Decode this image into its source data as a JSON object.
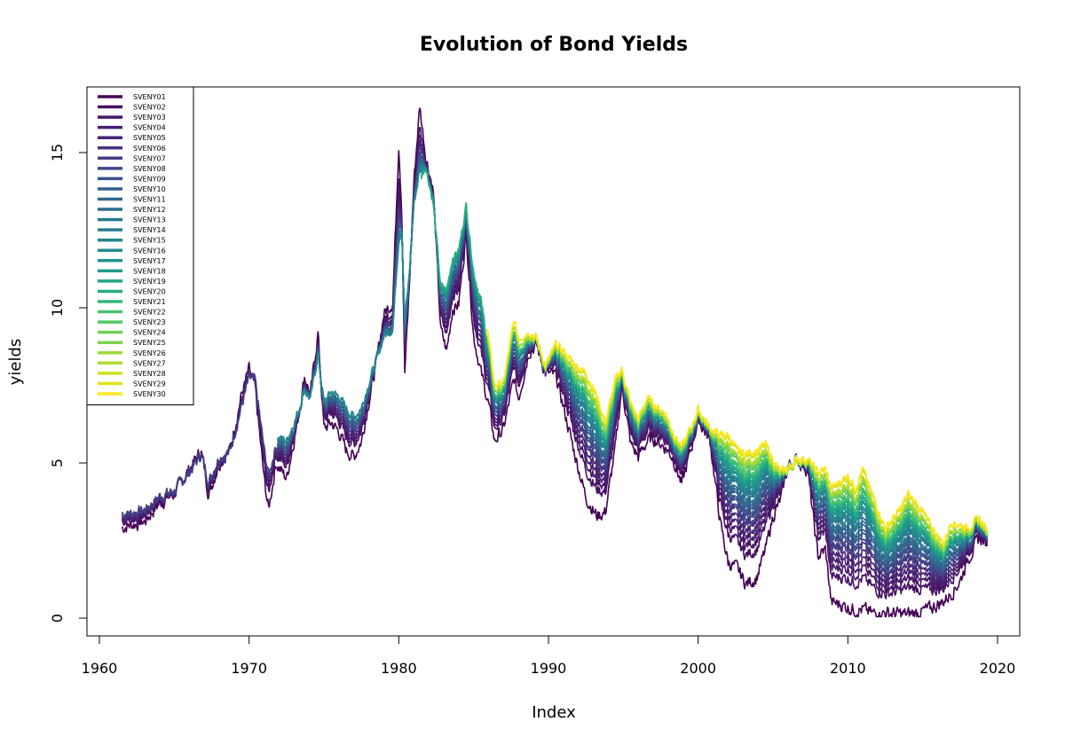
{
  "chart_data": {
    "type": "line",
    "title": "Evolution of Bond Yields",
    "xlabel": "Index",
    "ylabel": "yields",
    "xlim": [
      1961.5,
      2019.3
    ],
    "ylim": [
      0,
      16.5
    ],
    "x_ticks": [
      1960,
      1970,
      1980,
      1990,
      2000,
      2010,
      2020
    ],
    "y_ticks": [
      0,
      5,
      10,
      15
    ],
    "grid": false,
    "legend_position": "top-left",
    "palette": "viridis",
    "colors": [
      "#440154",
      "#46085C",
      "#471063",
      "#481769",
      "#48186A",
      "#481E70",
      "#472575",
      "#472C7A",
      "#46337E",
      "#433E85",
      "#404688",
      "#3E4A89",
      "#3B518B",
      "#38598C",
      "#355F8D",
      "#33638D",
      "#31688E",
      "#2E6E8E",
      "#2C728E",
      "#2A788E",
      "#287D8E",
      "#26828E",
      "#24878E",
      "#228B8D",
      "#21908C",
      "#1F948C",
      "#1F998A",
      "#1FA088",
      "#22A785",
      "#27AD81",
      "#2EB37C",
      "#35B779",
      "#3FBC73",
      "#4AC16D",
      "#56C667",
      "#63CB5F",
      "#70CF57",
      "#7FD34E",
      "#8FD744",
      "#9FDA3A",
      "#AEDC30",
      "#BFDF25",
      "#CFE11C",
      "#DFE318",
      "#ECE51B",
      "#FDE725"
    ],
    "series_names": [
      "SVENY01",
      "SVENY02",
      "SVENY03",
      "SVENY04",
      "SVENY05",
      "SVENY06",
      "SVENY07",
      "SVENY08",
      "SVENY09",
      "SVENY10",
      "SVENY11",
      "SVENY12",
      "SVENY13",
      "SVENY14",
      "SVENY15",
      "SVENY16",
      "SVENY17",
      "SVENY18",
      "SVENY19",
      "SVENY20",
      "SVENY21",
      "SVENY22",
      "SVENY23",
      "SVENY24",
      "SVENY25",
      "SVENY26",
      "SVENY27",
      "SVENY28",
      "SVENY29",
      "SVENY30"
    ],
    "series_start": [
      1961.5,
      1961.5,
      1961.5,
      1961.5,
      1961.5,
      1961.5,
      1961.5,
      1971.9,
      1971.9,
      1971.9,
      1971.9,
      1971.9,
      1971.9,
      1971.9,
      1971.9,
      1981.5,
      1981.5,
      1981.5,
      1981.5,
      1981.5,
      1985.9,
      1985.9,
      1985.9,
      1985.9,
      1985.9,
      1985.9,
      1985.9,
      1985.9,
      1985.9,
      1985.9
    ],
    "long_rate": [
      [
        1961.5,
        3.9
      ],
      [
        1962.0,
        3.8
      ],
      [
        1963.0,
        3.9
      ],
      [
        1964.0,
        4.15
      ],
      [
        1965.0,
        4.2
      ],
      [
        1966.0,
        4.6
      ],
      [
        1966.8,
        5.2
      ],
      [
        1967.3,
        4.8
      ],
      [
        1968.0,
        5.4
      ],
      [
        1968.7,
        5.3
      ],
      [
        1969.5,
        6.5
      ],
      [
        1970.0,
        7.5
      ],
      [
        1970.4,
        7.9
      ],
      [
        1971.0,
        6.5
      ],
      [
        1971.3,
        5.8
      ],
      [
        1971.8,
        6.2
      ],
      [
        1972.5,
        6.2
      ],
      [
        1973.3,
        6.7
      ],
      [
        1973.7,
        7.2
      ],
      [
        1974.1,
        7.0
      ],
      [
        1974.6,
        8.2
      ],
      [
        1975.0,
        7.3
      ],
      [
        1975.5,
        7.7
      ],
      [
        1976.0,
        7.6
      ],
      [
        1976.5,
        7.3
      ],
      [
        1977.0,
        7.0
      ],
      [
        1977.5,
        7.2
      ],
      [
        1978.0,
        7.8
      ],
      [
        1978.5,
        8.3
      ],
      [
        1979.0,
        8.8
      ],
      [
        1979.6,
        9.0
      ],
      [
        1980.0,
        11.0
      ],
      [
        1980.2,
        12.3
      ],
      [
        1980.4,
        10.2
      ],
      [
        1980.7,
        11.2
      ],
      [
        1981.0,
        13.0
      ],
      [
        1981.4,
        13.6
      ],
      [
        1981.8,
        14.5
      ],
      [
        1982.3,
        13.3
      ],
      [
        1982.8,
        11.0
      ],
      [
        1983.2,
        11.0
      ],
      [
        1983.6,
        12.0
      ],
      [
        1984.0,
        12.2
      ],
      [
        1984.5,
        13.5
      ],
      [
        1985.0,
        11.6
      ],
      [
        1985.5,
        10.7
      ],
      [
        1986.0,
        9.0
      ],
      [
        1986.4,
        7.5
      ],
      [
        1987.0,
        7.6
      ],
      [
        1987.7,
        9.6
      ],
      [
        1988.0,
        9.0
      ],
      [
        1988.7,
        9.2
      ],
      [
        1989.2,
        9.0
      ],
      [
        1989.8,
        8.1
      ],
      [
        1990.5,
        8.8
      ],
      [
        1991.0,
        8.6
      ],
      [
        1991.7,
        8.2
      ],
      [
        1992.5,
        7.9
      ],
      [
        1993.2,
        7.2
      ],
      [
        1993.8,
        6.3
      ],
      [
        1994.5,
        7.7
      ],
      [
        1994.9,
        8.0
      ],
      [
        1995.5,
        6.9
      ],
      [
        1996.0,
        6.4
      ],
      [
        1996.6,
        7.1
      ],
      [
        1997.0,
        6.9
      ],
      [
        1997.8,
        6.6
      ],
      [
        1998.3,
        6.0
      ],
      [
        1998.9,
        5.5
      ],
      [
        1999.5,
        6.1
      ],
      [
        2000.0,
        6.7
      ],
      [
        2000.8,
        6.1
      ],
      [
        2001.5,
        5.9
      ],
      [
        2002.0,
        5.9
      ],
      [
        2002.6,
        5.4
      ],
      [
        2003.2,
        5.3
      ],
      [
        2003.9,
        5.4
      ],
      [
        2004.5,
        5.6
      ],
      [
        2005.0,
        5.1
      ],
      [
        2005.5,
        4.7
      ],
      [
        2006.0,
        4.8
      ],
      [
        2006.6,
        5.1
      ],
      [
        2007.3,
        5.1
      ],
      [
        2008.0,
        4.7
      ],
      [
        2008.5,
        4.8
      ],
      [
        2008.9,
        4.2
      ],
      [
        2009.5,
        4.4
      ],
      [
        2010.0,
        4.6
      ],
      [
        2010.5,
        4.2
      ],
      [
        2011.0,
        4.8
      ],
      [
        2011.7,
        3.9
      ],
      [
        2012.5,
        2.9
      ],
      [
        2013.5,
        3.5
      ],
      [
        2014.0,
        4.0
      ],
      [
        2014.8,
        3.6
      ],
      [
        2015.5,
        3.0
      ],
      [
        2016.4,
        2.4
      ],
      [
        2016.9,
        3.1
      ],
      [
        2017.5,
        3.0
      ],
      [
        2018.0,
        2.9
      ],
      [
        2018.8,
        3.2
      ],
      [
        2019.3,
        2.8
      ]
    ],
    "short_rate": [
      [
        1961.5,
        2.9
      ],
      [
        1962.0,
        3.0
      ],
      [
        1963.0,
        3.1
      ],
      [
        1964.0,
        3.7
      ],
      [
        1965.0,
        4.0
      ],
      [
        1966.0,
        4.8
      ],
      [
        1966.8,
        5.4
      ],
      [
        1967.3,
        4.0
      ],
      [
        1968.0,
        5.0
      ],
      [
        1968.7,
        5.4
      ],
      [
        1969.5,
        7.2
      ],
      [
        1970.0,
        8.0
      ],
      [
        1970.4,
        7.4
      ],
      [
        1971.0,
        4.5
      ],
      [
        1971.3,
        3.5
      ],
      [
        1971.8,
        5.0
      ],
      [
        1972.5,
        4.5
      ],
      [
        1973.3,
        6.5
      ],
      [
        1973.7,
        7.8
      ],
      [
        1974.1,
        7.2
      ],
      [
        1974.6,
        9.2
      ],
      [
        1975.0,
        6.1
      ],
      [
        1975.5,
        6.3
      ],
      [
        1976.0,
        6.0
      ],
      [
        1976.5,
        5.4
      ],
      [
        1977.0,
        5.2
      ],
      [
        1977.5,
        5.7
      ],
      [
        1978.0,
        7.0
      ],
      [
        1978.5,
        8.2
      ],
      [
        1979.0,
        9.8
      ],
      [
        1979.6,
        10.2
      ],
      [
        1980.0,
        15.3
      ],
      [
        1980.2,
        13.2
      ],
      [
        1980.4,
        7.9
      ],
      [
        1980.7,
        10.6
      ],
      [
        1981.0,
        14.0
      ],
      [
        1981.4,
        16.5
      ],
      [
        1981.8,
        14.9
      ],
      [
        1982.3,
        13.8
      ],
      [
        1982.8,
        9.3
      ],
      [
        1983.2,
        8.6
      ],
      [
        1983.6,
        10.0
      ],
      [
        1984.0,
        10.1
      ],
      [
        1984.5,
        12.4
      ],
      [
        1985.0,
        9.1
      ],
      [
        1985.5,
        7.9
      ],
      [
        1986.0,
        6.9
      ],
      [
        1986.4,
        5.7
      ],
      [
        1987.0,
        6.1
      ],
      [
        1987.7,
        7.7
      ],
      [
        1988.0,
        7.1
      ],
      [
        1988.7,
        8.6
      ],
      [
        1989.2,
        8.8
      ],
      [
        1989.8,
        7.9
      ],
      [
        1990.5,
        7.8
      ],
      [
        1991.0,
        6.8
      ],
      [
        1991.7,
        5.4
      ],
      [
        1992.5,
        3.9
      ],
      [
        1993.2,
        3.3
      ],
      [
        1993.8,
        3.4
      ],
      [
        1994.5,
        5.6
      ],
      [
        1994.9,
        7.5
      ],
      [
        1995.5,
        5.6
      ],
      [
        1996.0,
        5.2
      ],
      [
        1996.6,
        5.7
      ],
      [
        1997.0,
        5.8
      ],
      [
        1997.8,
        5.5
      ],
      [
        1998.3,
        5.2
      ],
      [
        1998.9,
        4.3
      ],
      [
        1999.5,
        5.4
      ],
      [
        2000.0,
        6.4
      ],
      [
        2000.8,
        5.7
      ],
      [
        2001.5,
        3.0
      ],
      [
        2002.0,
        1.8
      ],
      [
        2002.6,
        1.6
      ],
      [
        2003.2,
        1.1
      ],
      [
        2003.9,
        1.3
      ],
      [
        2004.5,
        2.2
      ],
      [
        2005.0,
        3.3
      ],
      [
        2005.5,
        3.8
      ],
      [
        2006.0,
        4.9
      ],
      [
        2006.6,
        5.1
      ],
      [
        2007.3,
        4.8
      ],
      [
        2008.0,
        2.0
      ],
      [
        2008.5,
        2.2
      ],
      [
        2008.9,
        0.5
      ],
      [
        2009.5,
        0.45
      ],
      [
        2010.0,
        0.35
      ],
      [
        2010.5,
        0.28
      ],
      [
        2011.0,
        0.28
      ],
      [
        2011.7,
        0.14
      ],
      [
        2012.5,
        0.18
      ],
      [
        2013.5,
        0.13
      ],
      [
        2014.0,
        0.12
      ],
      [
        2014.8,
        0.2
      ],
      [
        2015.5,
        0.3
      ],
      [
        2016.4,
        0.55
      ],
      [
        2016.9,
        0.8
      ],
      [
        2017.5,
        1.2
      ],
      [
        2018.0,
        1.9
      ],
      [
        2018.8,
        2.6
      ],
      [
        2019.3,
        2.4
      ]
    ]
  }
}
